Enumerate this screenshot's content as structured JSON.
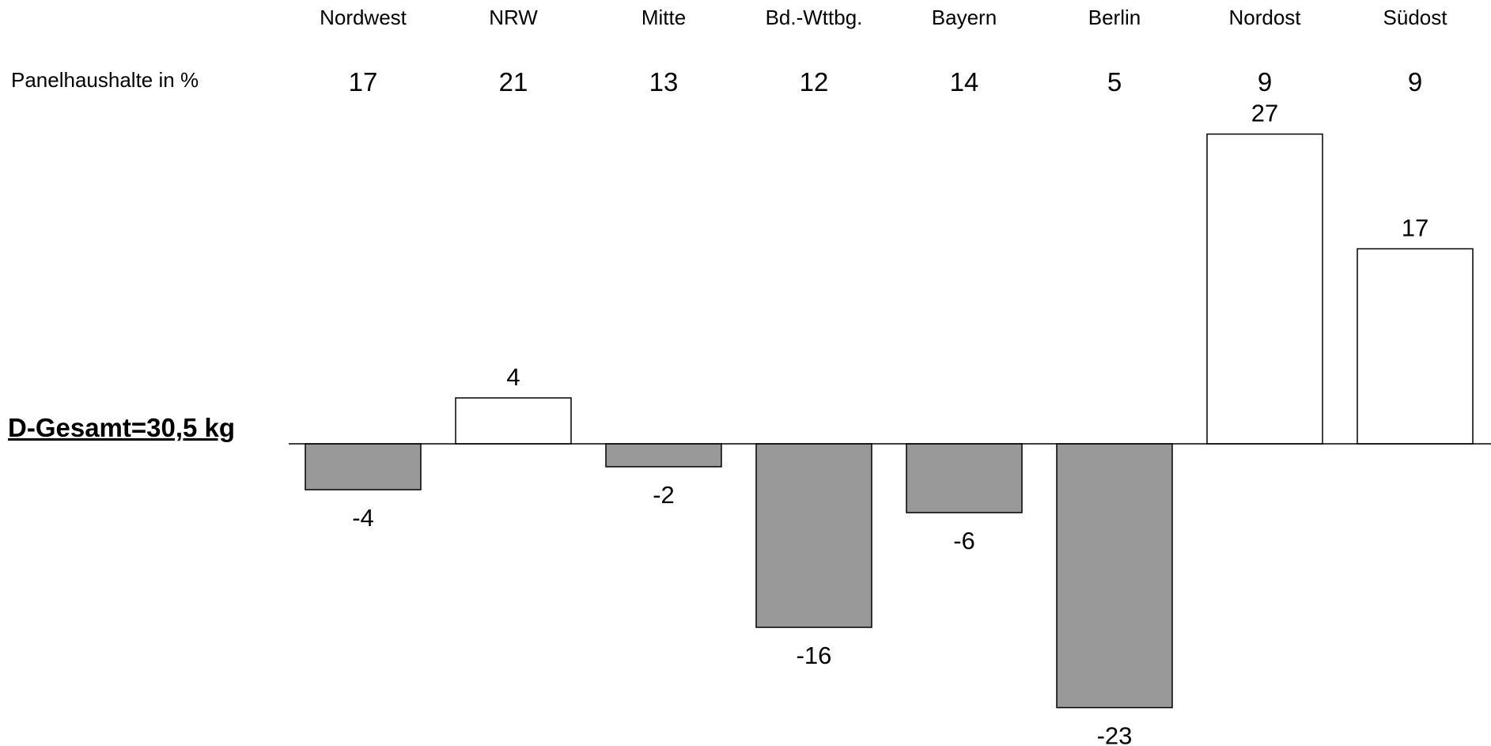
{
  "chart_data": {
    "type": "bar",
    "categories": [
      "Nordwest",
      "NRW",
      "Mitte",
      "Bd.-Wttbg.",
      "Bayern",
      "Berlin",
      "Nordost",
      "Südost"
    ],
    "values": [
      -4,
      4,
      -2,
      -16,
      -6,
      -23,
      27,
      17
    ],
    "data_labels": [
      "-4",
      "4",
      "-2",
      "-16",
      "-6",
      "-23",
      "27",
      "17"
    ],
    "panel_row": {
      "label": "Panelhaushalte in %",
      "values": [
        "17",
        "21",
        "13",
        "12",
        "14",
        "5",
        "9",
        "9"
      ]
    },
    "baseline_label": "D-Gesamt=30,5 kg",
    "title": "",
    "xlabel": "",
    "ylabel": "",
    "ylim": [
      -23,
      27
    ],
    "grid": false,
    "legend": "none",
    "colors": {
      "positive": "#ffffff",
      "negative": "#999999",
      "stroke": "#000000",
      "text": "#000000"
    }
  }
}
